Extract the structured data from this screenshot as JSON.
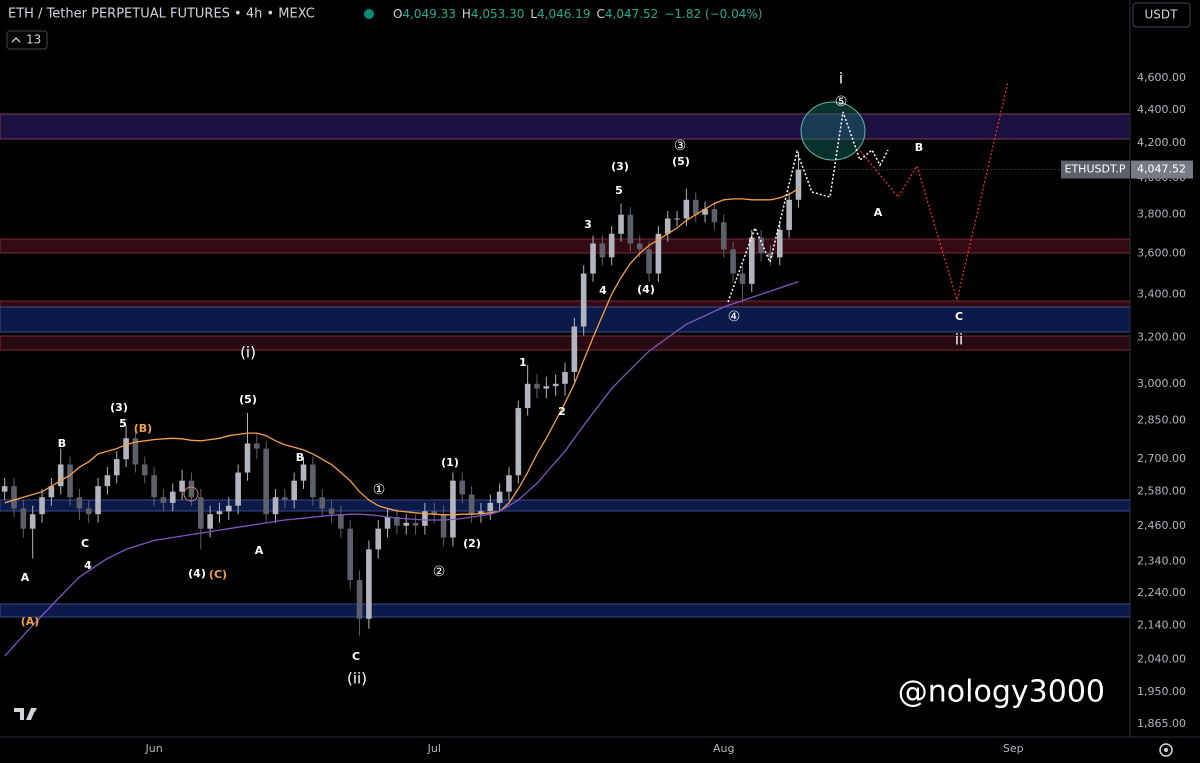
{
  "header": {
    "symbol": "ETH / Tether PERPETUAL FUTURES • 4h • MEXC",
    "ohlc": [
      {
        "key": "O",
        "value": "4,049.33"
      },
      {
        "key": "H",
        "value": "4,053.30"
      },
      {
        "key": "L",
        "value": "4,046.19"
      },
      {
        "key": "C",
        "value": "4,047.52"
      }
    ],
    "change": "−1.82 (−0.04%)",
    "indicators": "13",
    "currency": "USDT",
    "watermark": "@nology3000"
  },
  "chart_data": {
    "type": "candlestick",
    "log_scale": true,
    "grid": false,
    "up_color": "#b2b5be",
    "down_color": "#5d606b",
    "symbol_label": "ETHUSDT.P",
    "price_label": "4,047.52",
    "categories": [
      null,
      null,
      null,
      null,
      null,
      null,
      null,
      null,
      null,
      null,
      null,
      null,
      null,
      null,
      null,
      null,
      "Jun",
      null,
      null,
      null,
      null,
      null,
      null,
      null,
      null,
      null,
      null,
      null,
      null,
      null,
      null,
      null,
      null,
      null,
      null,
      null,
      null,
      null,
      null,
      null,
      null,
      null,
      null,
      null,
      null,
      null,
      "Jul",
      null,
      null,
      null,
      null,
      null,
      null,
      null,
      null,
      null,
      null,
      null,
      null,
      null,
      null,
      null,
      null,
      null,
      null,
      null,
      null,
      null,
      null,
      null,
      null,
      null,
      null,
      null,
      null,
      null,
      null,
      "Aug",
      null,
      null,
      null,
      null,
      null,
      null,
      null,
      null,
      null,
      null,
      null,
      null,
      null,
      null,
      null,
      null,
      null,
      null,
      null,
      null,
      null,
      null,
      null,
      null,
      null,
      null,
      null,
      null,
      null,
      null,
      "Sep",
      null,
      null,
      null,
      null,
      null,
      null,
      null,
      null,
      null,
      null,
      null,
      null
    ],
    "open": [
      2580,
      2600,
      2520,
      2450,
      2500,
      2560,
      2600,
      2680,
      2560,
      2520,
      2500,
      2600,
      2640,
      2700,
      2780,
      2680,
      2640,
      2560,
      2540,
      2580,
      2620,
      2560,
      2450,
      2500,
      2510,
      2530,
      2650,
      2760,
      2740,
      2500,
      2560,
      2550,
      2620,
      2680,
      2560,
      2520,
      2500,
      2450,
      2280,
      2160,
      2380,
      2450,
      2490,
      2460,
      2470,
      2460,
      2510,
      2500,
      2420,
      2620,
      2570,
      2500,
      2510,
      2540,
      2580,
      2640,
      2900,
      3000,
      2980,
      2990,
      3000,
      3050,
      3250,
      3500,
      3650,
      3580,
      3700,
      3800,
      3650,
      3620,
      3500,
      3700,
      3780,
      3780,
      3880,
      3800,
      3830,
      3760,
      3620,
      3500,
      3450,
      3680,
      3600,
      3580,
      3720,
      3880,
      null,
      null,
      null,
      null,
      null,
      null,
      null,
      null,
      null,
      null,
      null,
      null,
      null,
      null,
      null,
      null,
      null,
      null,
      null,
      null,
      null,
      null,
      null,
      null,
      null,
      null,
      null,
      null,
      null,
      null,
      null,
      null,
      null,
      null,
      null
    ],
    "high": [
      2630,
      2630,
      2550,
      2530,
      2590,
      2630,
      2740,
      2710,
      2590,
      2550,
      2630,
      2670,
      2730,
      2830,
      2810,
      2710,
      2670,
      2590,
      2610,
      2660,
      2650,
      2590,
      2530,
      2540,
      2560,
      2680,
      2880,
      2800,
      2770,
      2590,
      2590,
      2650,
      2710,
      2710,
      2590,
      2550,
      2530,
      2480,
      2310,
      2410,
      2480,
      2520,
      2520,
      2500,
      2500,
      2540,
      2540,
      2530,
      2650,
      2650,
      2600,
      2540,
      2570,
      2610,
      2670,
      2930,
      3080,
      3040,
      3030,
      3040,
      3090,
      3290,
      3540,
      3690,
      3690,
      3740,
      3860,
      3840,
      3690,
      3660,
      3740,
      3820,
      3820,
      3940,
      3920,
      3870,
      3870,
      3800,
      3660,
      3540,
      3720,
      3720,
      3640,
      3760,
      3920,
      4150,
      null,
      null,
      null,
      null,
      null,
      null,
      null,
      null,
      null,
      null,
      null,
      null,
      null,
      null,
      null,
      null,
      null,
      null,
      null,
      null,
      null,
      null,
      null,
      null,
      null,
      null,
      null,
      null,
      null,
      null,
      null,
      null,
      null,
      null,
      null
    ],
    "low": [
      2550,
      2490,
      2420,
      2350,
      2470,
      2530,
      2570,
      2530,
      2480,
      2470,
      2470,
      2570,
      2610,
      2670,
      2650,
      2610,
      2530,
      2510,
      2510,
      2550,
      2530,
      2380,
      2420,
      2470,
      2480,
      2500,
      2620,
      2700,
      2470,
      2470,
      2520,
      2520,
      2590,
      2530,
      2490,
      2470,
      2420,
      2250,
      2110,
      2130,
      2350,
      2420,
      2430,
      2430,
      2430,
      2430,
      2470,
      2390,
      2390,
      2540,
      2470,
      2470,
      2480,
      2510,
      2550,
      2610,
      2870,
      2940,
      2940,
      2950,
      2950,
      3010,
      3210,
      3460,
      3540,
      3540,
      3660,
      3610,
      3580,
      3460,
      3460,
      3660,
      3740,
      3740,
      3760,
      3760,
      3720,
      3580,
      3460,
      3360,
      3410,
      3560,
      3540,
      3540,
      3680,
      3840,
      null,
      null,
      null,
      null,
      null,
      null,
      null,
      null,
      null,
      null,
      null,
      null,
      null,
      null,
      null,
      null,
      null,
      null,
      null,
      null,
      null,
      null,
      null,
      null,
      null,
      null,
      null,
      null,
      null,
      null,
      null,
      null,
      null,
      null,
      null
    ],
    "close": [
      2600,
      2520,
      2450,
      2500,
      2560,
      2600,
      2680,
      2560,
      2520,
      2500,
      2600,
      2640,
      2700,
      2780,
      2680,
      2640,
      2560,
      2540,
      2580,
      2620,
      2560,
      2450,
      2500,
      2510,
      2530,
      2650,
      2760,
      2740,
      2500,
      2560,
      2550,
      2620,
      2680,
      2560,
      2520,
      2500,
      2450,
      2280,
      2160,
      2380,
      2450,
      2490,
      2460,
      2470,
      2460,
      2510,
      2500,
      2420,
      2620,
      2570,
      2500,
      2510,
      2540,
      2580,
      2640,
      2900,
      3000,
      2980,
      2990,
      3000,
      3050,
      3250,
      3500,
      3650,
      3580,
      3700,
      3800,
      3650,
      3620,
      3500,
      3700,
      3780,
      3780,
      3880,
      3800,
      3830,
      3760,
      3620,
      3500,
      3450,
      3680,
      3600,
      3580,
      3720,
      3880,
      4047.52,
      null,
      null,
      null,
      null,
      null,
      null,
      null,
      null,
      null,
      null,
      null,
      null,
      null,
      null,
      null,
      null,
      null,
      null,
      null,
      null,
      null,
      null,
      null,
      null,
      null,
      null,
      null,
      null,
      null,
      null,
      null,
      null,
      null,
      null,
      null
    ],
    "moving_averages": [
      {
        "color": "#f5a04a",
        "values": [
          2540,
          2550,
          2560,
          2570,
          2580,
          2600,
          2620,
          2640,
          2670,
          2690,
          2720,
          2730,
          2740,
          2755,
          2765,
          2770,
          2775,
          2778,
          2780,
          2778,
          2772,
          2770,
          2775,
          2780,
          2790,
          2795,
          2800,
          2800,
          2790,
          2770,
          2755,
          2745,
          2735,
          2720,
          2700,
          2680,
          2650,
          2620,
          2580,
          2550,
          2530,
          2520,
          2512,
          2508,
          2505,
          2502,
          2500,
          2498,
          2498,
          2500,
          2500,
          2502,
          2505,
          2510,
          2540,
          2590,
          2650,
          2720,
          2780,
          2850,
          2920,
          3000,
          3100,
          3200,
          3300,
          3400,
          3480,
          3550,
          3600,
          3640,
          3670,
          3700,
          3730,
          3770,
          3800,
          3830,
          3860,
          3880,
          3885,
          3885,
          3880,
          3880,
          3880,
          3890,
          3910,
          3940,
          null,
          null,
          null,
          null,
          null,
          null,
          null,
          null,
          null,
          null,
          null,
          null,
          null,
          null,
          null,
          null,
          null,
          null,
          null,
          null,
          null,
          null,
          null,
          null,
          null,
          null,
          null,
          null,
          null,
          null,
          null,
          null,
          null,
          null,
          null
        ]
      },
      {
        "color": "#7e57c2",
        "values": [
          2050,
          2080,
          2110,
          2140,
          2170,
          2200,
          2230,
          2260,
          2290,
          2310,
          2330,
          2350,
          2365,
          2380,
          2390,
          2400,
          2410,
          2415,
          2420,
          2425,
          2430,
          2435,
          2440,
          2445,
          2450,
          2455,
          2460,
          2465,
          2470,
          2475,
          2480,
          2483,
          2486,
          2490,
          2493,
          2496,
          2498,
          2500,
          2500,
          2498,
          2495,
          2490,
          2487,
          2484,
          2482,
          2480,
          2480,
          2480,
          2482,
          2485,
          2490,
          2495,
          2500,
          2510,
          2530,
          2550,
          2580,
          2610,
          2650,
          2690,
          2730,
          2780,
          2830,
          2880,
          2930,
          2980,
          3020,
          3060,
          3100,
          3140,
          3170,
          3200,
          3230,
          3260,
          3280,
          3300,
          3320,
          3340,
          3355,
          3370,
          3385,
          3400,
          3415,
          3430,
          3445,
          3460,
          null,
          null,
          null,
          null,
          null,
          null,
          null,
          null,
          null,
          null,
          null,
          null,
          null,
          null,
          null,
          null,
          null,
          null,
          null,
          null,
          null,
          null,
          null,
          null,
          null,
          null,
          null,
          null,
          null,
          null,
          null,
          null,
          null,
          null,
          null
        ]
      }
    ],
    "ylim": [
      1831,
      5130
    ],
    "yticks": [
      {
        "value": 4600,
        "label": "4,600.00"
      },
      {
        "value": 4400,
        "label": "4,400.00"
      },
      {
        "value": 4200,
        "label": "4,200.00"
      },
      {
        "value": 4000,
        "label": "4,000.00"
      },
      {
        "value": 3800,
        "label": "3,800.00"
      },
      {
        "value": 3600,
        "label": "3,600.00"
      },
      {
        "value": 3400,
        "label": "3,400.00"
      },
      {
        "value": 3200,
        "label": "3,200.00"
      },
      {
        "value": 3000,
        "label": "3,000.00"
      },
      {
        "value": 2850,
        "label": "2,850.00"
      },
      {
        "value": 2700,
        "label": "2,700.00"
      },
      {
        "value": 2580,
        "label": "2,580.00"
      },
      {
        "value": 2460,
        "label": "2,460.00"
      },
      {
        "value": 2340,
        "label": "2,340.00"
      },
      {
        "value": 2240,
        "label": "2,240.00"
      },
      {
        "value": 2140,
        "label": "2,140.00"
      },
      {
        "value": 2040,
        "label": "2,040.00"
      },
      {
        "value": 1950,
        "label": "1,950.00"
      },
      {
        "value": 1865,
        "label": "1,865.00"
      }
    ],
    "annotations": [
      {
        "text": "A",
        "color": "#ffffff"
      },
      {
        "text": "B",
        "color": "#ffffff"
      },
      {
        "text": "C",
        "color": "#ffffff"
      },
      {
        "text": "4",
        "color": "#ffffff"
      },
      {
        "text": "(3)",
        "color": "#ffffff"
      },
      {
        "text": "5",
        "color": "#ffffff"
      },
      {
        "text": "(B)",
        "color": "#f5a04a"
      },
      {
        "text": "(4)",
        "color": "#ffffff"
      },
      {
        "text": "(C)",
        "color": "#f5a04a"
      },
      {
        "text": "(A)",
        "color": "#f5a04a"
      },
      {
        "text": "(i)",
        "color": "#ffffff"
      },
      {
        "text": "(5)",
        "color": "#ffffff"
      },
      {
        "text": "A",
        "color": "#ffffff"
      },
      {
        "text": "B",
        "color": "#ffffff"
      },
      {
        "text": "C",
        "color": "#ffffff"
      },
      {
        "text": "(ii)",
        "color": "#ffffff"
      },
      {
        "text": "①",
        "color": "#ffffff"
      },
      {
        "text": "(1)",
        "color": "#ffffff"
      },
      {
        "text": "(2)",
        "color": "#ffffff"
      },
      {
        "text": "②",
        "color": "#ffffff"
      },
      {
        "text": "1",
        "color": "#ffffff"
      },
      {
        "text": "2",
        "color": "#ffffff"
      },
      {
        "text": "3",
        "color": "#ffffff"
      },
      {
        "text": "4",
        "color": "#ffffff"
      },
      {
        "text": "5",
        "color": "#ffffff"
      },
      {
        "text": "(3)",
        "color": "#ffffff"
      },
      {
        "text": "(4)",
        "color": "#ffffff"
      },
      {
        "text": "③",
        "color": "#ffffff"
      },
      {
        "text": "(5)",
        "color": "#ffffff"
      },
      {
        "text": "④",
        "color": "#ffffff"
      },
      {
        "text": "i",
        "color": "#ffffff"
      },
      {
        "text": "⑤",
        "color": "#ffffff"
      },
      {
        "text": "B",
        "color": "#ffffff"
      },
      {
        "text": "A",
        "color": "#ffffff"
      },
      {
        "text": "C",
        "color": "#ffffff"
      },
      {
        "text": "ii",
        "color": "#ffffff"
      }
    ]
  }
}
